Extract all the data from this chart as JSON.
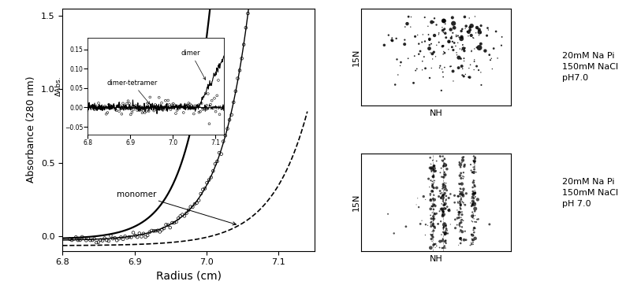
{
  "main_plot": {
    "x_min": 6.8,
    "x_max": 7.15,
    "y_min": -0.1,
    "y_max": 1.55,
    "xlabel": "Radius (cm)",
    "ylabel": "Absorbance (280 nm)",
    "xticks": [
      6.8,
      6.9,
      7.0,
      7.1
    ],
    "yticks": [
      0.0,
      0.5,
      1.0,
      1.5
    ]
  },
  "inset": {
    "x_min": 6.8,
    "x_max": 7.12,
    "y_min": -0.07,
    "y_max": 0.18,
    "ylabel": "ΔAbs.",
    "yticks": [
      -0.05,
      0.0,
      0.05,
      0.1,
      0.15
    ]
  },
  "hsqc_top": {
    "xlabel": "NH",
    "ylabel": "15N",
    "condition": "20mM Na Pi\n150mM NaCl\npH7.0"
  },
  "hsqc_bottom": {
    "xlabel": "NH",
    "ylabel": "15N",
    "condition": "20mM Na Pi\n150mM NaCl\npH 7.0"
  },
  "background_color": "#ffffff"
}
